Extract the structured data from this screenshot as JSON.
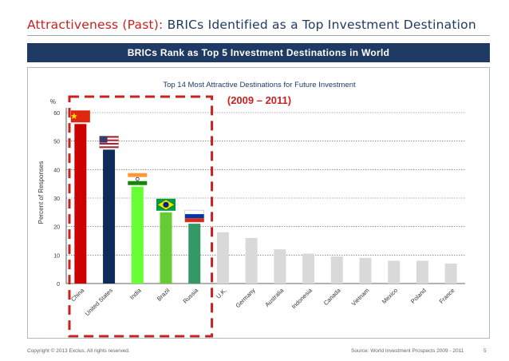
{
  "slide": {
    "title_accent": "Attractiveness (Past):",
    "title_rest": " BRICs Identified as a Top Investment Destination",
    "banner": "BRICs Rank as Top 5 Investment Destinations in World",
    "footer_left": "Copyright © 2013 Exclus. All rights reserved.",
    "footer_right": "Source:  World Investment Prospects 2009 - 2011",
    "page_number": "5"
  },
  "chart_data": {
    "type": "bar",
    "title": "Top 14 Most Attractive Destinations for Future Investment",
    "subtitle": "(2009 – 2011)",
    "ylabel": "Percent of Responses",
    "yunit": "%",
    "ylim": [
      0,
      60
    ],
    "yticks": [
      0,
      10,
      20,
      30,
      40,
      50,
      60
    ],
    "grid": true,
    "categories": [
      "China",
      "United States",
      "India",
      "Brazil",
      "Russia",
      "U.K.",
      "Germany",
      "Australia",
      "Indonesia",
      "Canada",
      "Vietnam",
      "Mexico",
      "Poland",
      "France"
    ],
    "values": [
      56,
      47,
      34,
      25,
      21,
      18,
      16,
      12,
      10.5,
      9.5,
      9,
      8,
      8,
      7
    ],
    "bar_colors": [
      "#cc0000",
      "#0d2c5b",
      "#66ff33",
      "#66cc33",
      "#339966",
      "#d9d9d9",
      "#d9d9d9",
      "#d9d9d9",
      "#d9d9d9",
      "#d9d9d9",
      "#d9d9d9",
      "#d9d9d9",
      "#d9d9d9",
      "#d9d9d9"
    ],
    "flags": [
      "china-flag",
      "us-flag",
      "india-flag",
      "brazil-flag",
      "russia-flag"
    ],
    "highlight_count": 5,
    "highlight_color": "#c7221f",
    "subtitle_color": "#c7221f"
  }
}
